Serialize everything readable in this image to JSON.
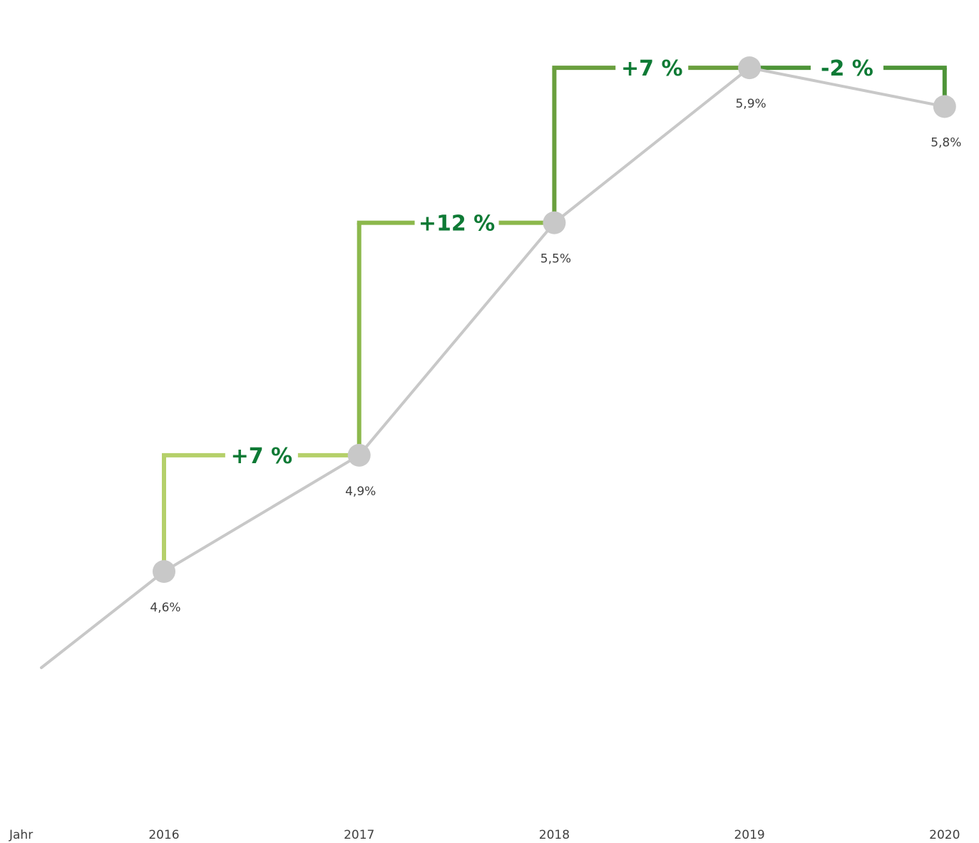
{
  "chart_data": {
    "type": "line",
    "xlabel": "Jahr",
    "categories": [
      "2016",
      "2017",
      "2018",
      "2019",
      "2020"
    ],
    "series": [
      {
        "values": [
          4.6,
          4.9,
          5.5,
          5.9,
          5.8
        ]
      }
    ],
    "point_labels": [
      "4,6%",
      "4,9%",
      "5,5%",
      "5,9%",
      "5,8%"
    ],
    "changes": [
      {
        "from": "2016",
        "to": "2017",
        "label": "+7 %"
      },
      {
        "from": "2017",
        "to": "2018",
        "label": "+12 %"
      },
      {
        "from": "2018",
        "to": "2019",
        "label": "+7 %"
      },
      {
        "from": "2019",
        "to": "2020",
        "label": "-2 %"
      }
    ],
    "grid": false,
    "colors": {
      "line": "#c8c8c8",
      "marker": "#c8c8c8",
      "change_text": "#0e7a35",
      "bracket": [
        "#b5d06a",
        "#8cb84c",
        "#6a9f3e",
        "#4e9438"
      ],
      "axis_top": "#0e7a35",
      "axis_bottom": "#b5d06a"
    }
  }
}
